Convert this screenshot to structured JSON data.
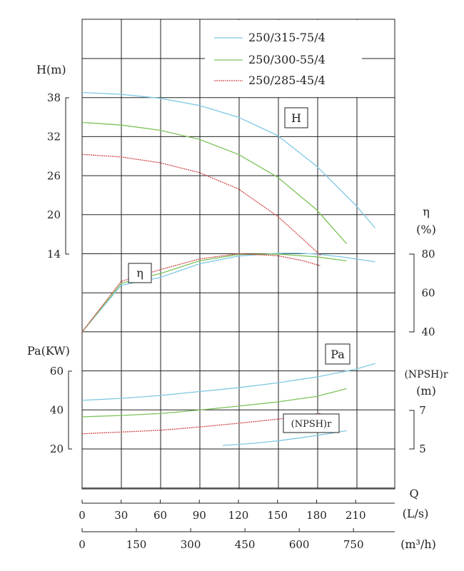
{
  "chart_data": {
    "type": "line",
    "legend": {
      "placement": "top-right",
      "entries": [
        {
          "name": "250/315-75/4",
          "color": "#7ec8e3"
        },
        {
          "name": "250/300-55/4",
          "color": "#7cc35a"
        },
        {
          "name": "250/285-45/4",
          "color": "#d04848"
        }
      ]
    },
    "x_axis": {
      "label": "Q",
      "unit_ls": "(L/s)",
      "unit_m3h": "(m³/h)",
      "ticks_ls": [
        "0",
        "30",
        "60",
        "90",
        "120",
        "150",
        "180",
        "210"
      ],
      "ticks_m3h": [
        "0",
        "150",
        "300",
        "450",
        "600",
        "750"
      ],
      "range_ls": [
        0,
        240
      ]
    },
    "axes": {
      "H": {
        "label": "H(m)",
        "ticks": [
          "38",
          "32",
          "26",
          "20",
          "14"
        ],
        "range": [
          14,
          44
        ]
      },
      "eta": {
        "label": "η",
        "unit": "(%)",
        "ticks": [
          "80",
          "60",
          "40"
        ],
        "range": [
          40,
          80
        ]
      },
      "Pa": {
        "label": "Pa(KW)",
        "ticks": [
          "60",
          "40",
          "20"
        ],
        "range": [
          20,
          60
        ]
      },
      "NPSH": {
        "label": "(NPSH)r",
        "unit": "(m)",
        "ticks": [
          "7",
          "5"
        ],
        "range": [
          5,
          7
        ]
      }
    },
    "curve_labels": {
      "H": "H",
      "eta": "η",
      "Pa": "Pa",
      "NPSH": "(NPSH)r"
    },
    "grid": true,
    "series": [
      {
        "name": "250/315-75/4",
        "color": "#7ec8e3",
        "H": [
          [
            0,
            38.8
          ],
          [
            30,
            38.5
          ],
          [
            60,
            37.9
          ],
          [
            90,
            36.8
          ],
          [
            120,
            35
          ],
          [
            150,
            32.2
          ],
          [
            180,
            27.5
          ],
          [
            210,
            21.5
          ],
          [
            225,
            18
          ]
        ],
        "eta": [
          [
            0,
            40
          ],
          [
            30,
            64
          ],
          [
            60,
            68
          ],
          [
            90,
            75
          ],
          [
            120,
            79
          ],
          [
            150,
            80.4
          ],
          [
            165,
            80.5
          ],
          [
            180,
            80
          ],
          [
            200,
            78.5
          ],
          [
            225,
            76
          ]
        ],
        "Pa": [
          [
            0,
            45
          ],
          [
            30,
            46
          ],
          [
            60,
            47.5
          ],
          [
            90,
            49.5
          ],
          [
            120,
            51.5
          ],
          [
            150,
            54
          ],
          [
            180,
            57
          ],
          [
            210,
            61
          ],
          [
            225,
            64
          ]
        ],
        "NPSH": [
          [
            108,
            5.18
          ],
          [
            130,
            5.28
          ],
          [
            150,
            5.42
          ],
          [
            170,
            5.6
          ],
          [
            190,
            5.8
          ],
          [
            203,
            5.95
          ]
        ]
      },
      {
        "name": "250/300-55/4",
        "color": "#7cc35a",
        "H": [
          [
            0,
            34.2
          ],
          [
            30,
            33.8
          ],
          [
            60,
            33
          ],
          [
            90,
            31.6
          ],
          [
            120,
            29.3
          ],
          [
            150,
            25.8
          ],
          [
            180,
            20.8
          ],
          [
            203,
            15.6
          ]
        ],
        "eta": [
          [
            0,
            40
          ],
          [
            30,
            65
          ],
          [
            60,
            70
          ],
          [
            90,
            76.5
          ],
          [
            120,
            79.8
          ],
          [
            150,
            80
          ],
          [
            180,
            78.6
          ],
          [
            203,
            76.5
          ]
        ],
        "Pa": [
          [
            0,
            36.5
          ],
          [
            30,
            37.2
          ],
          [
            60,
            38.2
          ],
          [
            90,
            40
          ],
          [
            120,
            42
          ],
          [
            150,
            44.2
          ],
          [
            180,
            47
          ],
          [
            203,
            51
          ]
        ]
      },
      {
        "name": "250/285-45/4",
        "color": "#d04848",
        "H": [
          [
            0,
            29.3
          ],
          [
            30,
            28.9
          ],
          [
            60,
            28
          ],
          [
            90,
            26.5
          ],
          [
            120,
            24
          ],
          [
            150,
            19.8
          ],
          [
            170,
            16.2
          ],
          [
            183,
            13.8
          ]
        ],
        "eta": [
          [
            0,
            40
          ],
          [
            30,
            66
          ],
          [
            60,
            72
          ],
          [
            90,
            77.5
          ],
          [
            120,
            80.2
          ],
          [
            150,
            79.2
          ],
          [
            170,
            76.5
          ],
          [
            183,
            74
          ]
        ],
        "Pa": [
          [
            0,
            27.8
          ],
          [
            30,
            28.7
          ],
          [
            60,
            29.6
          ],
          [
            90,
            31.3
          ],
          [
            120,
            33.2
          ],
          [
            150,
            35.3
          ],
          [
            183,
            38.3
          ]
        ]
      }
    ]
  }
}
